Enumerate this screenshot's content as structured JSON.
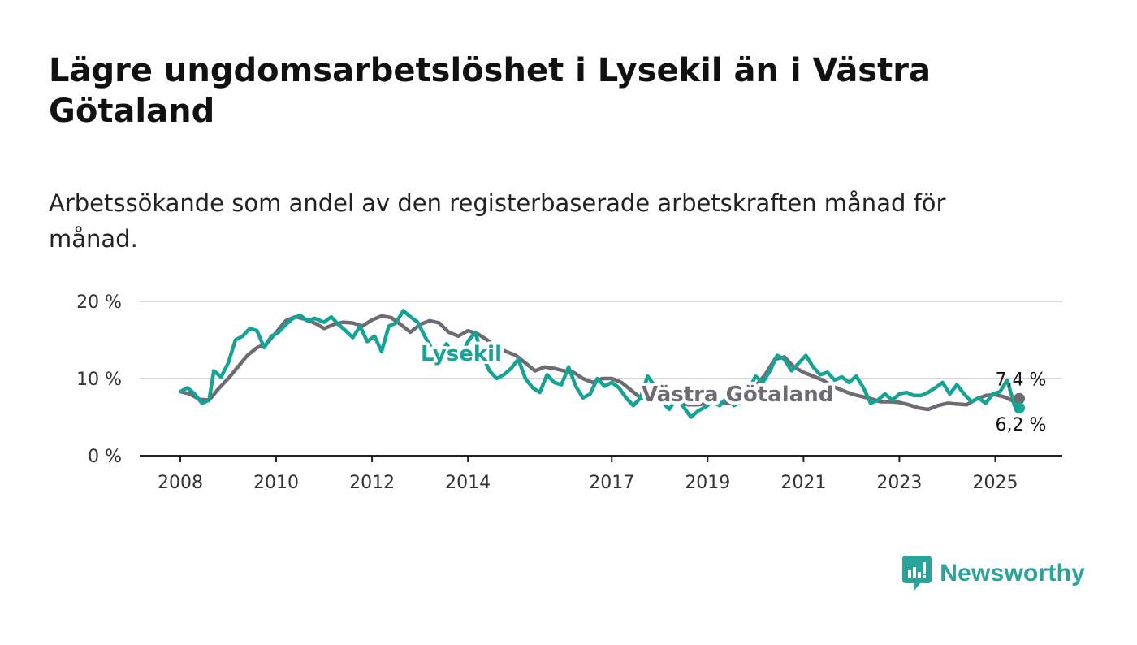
{
  "header": {
    "title": "Lägre ungdomsarbetslöshet i Lysekil än i Västra Götaland",
    "subtitle": "Arbetssökande som andel av den registerbaserade arbetskraften månad för månad."
  },
  "brand": {
    "name": "Newsworthy",
    "icon": "bar-chart-speech-bubble-icon",
    "color": "#2aa39a"
  },
  "chart_data": {
    "type": "line",
    "ylim": [
      0,
      20
    ],
    "yticks": [
      {
        "value": 0,
        "label": "0 %"
      },
      {
        "value": 10,
        "label": "10 %"
      },
      {
        "value": 20,
        "label": "20 %"
      }
    ],
    "xlim": [
      2007.5,
      2026.4
    ],
    "xticks": [
      {
        "value": 2008,
        "label": "2008"
      },
      {
        "value": 2010,
        "label": "2010"
      },
      {
        "value": 2012,
        "label": "2012"
      },
      {
        "value": 2014,
        "label": "2014"
      },
      {
        "value": 2017,
        "label": "2017"
      },
      {
        "value": 2019,
        "label": "2019"
      },
      {
        "value": 2021,
        "label": "2021"
      },
      {
        "value": 2023,
        "label": "2023"
      },
      {
        "value": 2025,
        "label": "2025"
      }
    ],
    "grid": true,
    "series": [
      {
        "name": "Västra Götaland",
        "color": "#6e6b72",
        "end_value_label": "7,4 %",
        "points": [
          [
            2008.0,
            8.3
          ],
          [
            2008.2,
            8.0
          ],
          [
            2008.4,
            7.3
          ],
          [
            2008.6,
            7.2
          ],
          [
            2008.8,
            8.7
          ],
          [
            2009.0,
            10.0
          ],
          [
            2009.2,
            11.5
          ],
          [
            2009.4,
            13.0
          ],
          [
            2009.6,
            14.0
          ],
          [
            2009.8,
            14.5
          ],
          [
            2010.0,
            16.0
          ],
          [
            2010.2,
            17.5
          ],
          [
            2010.4,
            18.0
          ],
          [
            2010.6,
            17.7
          ],
          [
            2010.8,
            17.2
          ],
          [
            2011.0,
            16.5
          ],
          [
            2011.2,
            17.0
          ],
          [
            2011.4,
            17.3
          ],
          [
            2011.6,
            17.2
          ],
          [
            2011.8,
            16.8
          ],
          [
            2012.0,
            17.6
          ],
          [
            2012.2,
            18.1
          ],
          [
            2012.4,
            17.9
          ],
          [
            2012.6,
            17.0
          ],
          [
            2012.8,
            16.0
          ],
          [
            2013.0,
            17.0
          ],
          [
            2013.2,
            17.5
          ],
          [
            2013.4,
            17.2
          ],
          [
            2013.6,
            16.0
          ],
          [
            2013.8,
            15.5
          ],
          [
            2014.0,
            16.2
          ],
          [
            2014.2,
            15.8
          ],
          [
            2014.4,
            15.0
          ],
          [
            2014.6,
            14.0
          ],
          [
            2014.8,
            13.5
          ],
          [
            2015.0,
            13.0
          ],
          [
            2015.2,
            12.0
          ],
          [
            2015.4,
            11.0
          ],
          [
            2015.6,
            11.5
          ],
          [
            2015.8,
            11.3
          ],
          [
            2016.0,
            11.0
          ],
          [
            2016.2,
            10.8
          ],
          [
            2016.4,
            10.0
          ],
          [
            2016.6,
            9.5
          ],
          [
            2016.8,
            10.0
          ],
          [
            2017.0,
            10.0
          ],
          [
            2017.2,
            9.5
          ],
          [
            2017.4,
            8.5
          ],
          [
            2017.6,
            7.5
          ],
          [
            2017.8,
            7.3
          ],
          [
            2018.0,
            7.2
          ],
          [
            2018.2,
            7.0
          ],
          [
            2018.4,
            6.8
          ],
          [
            2018.6,
            6.6
          ],
          [
            2018.8,
            6.6
          ],
          [
            2019.0,
            6.8
          ],
          [
            2019.2,
            6.9
          ],
          [
            2019.4,
            6.8
          ],
          [
            2019.6,
            7.0
          ],
          [
            2019.8,
            7.5
          ],
          [
            2020.0,
            9.0
          ],
          [
            2020.2,
            10.5
          ],
          [
            2020.4,
            12.5
          ],
          [
            2020.6,
            12.8
          ],
          [
            2020.8,
            11.5
          ],
          [
            2021.0,
            10.8
          ],
          [
            2021.2,
            10.3
          ],
          [
            2021.4,
            9.8
          ],
          [
            2021.6,
            9.0
          ],
          [
            2021.8,
            8.5
          ],
          [
            2022.0,
            8.0
          ],
          [
            2022.2,
            7.7
          ],
          [
            2022.4,
            7.4
          ],
          [
            2022.6,
            7.0
          ],
          [
            2022.8,
            7.0
          ],
          [
            2023.0,
            6.9
          ],
          [
            2023.2,
            6.6
          ],
          [
            2023.4,
            6.2
          ],
          [
            2023.6,
            6.0
          ],
          [
            2023.8,
            6.5
          ],
          [
            2024.0,
            6.8
          ],
          [
            2024.2,
            6.7
          ],
          [
            2024.4,
            6.6
          ],
          [
            2024.6,
            7.3
          ],
          [
            2024.8,
            7.8
          ],
          [
            2025.0,
            7.9
          ],
          [
            2025.2,
            7.6
          ],
          [
            2025.4,
            7.0
          ],
          [
            2025.5,
            7.4
          ]
        ]
      },
      {
        "name": "Lysekil",
        "color": "#14a394",
        "end_value_label": "6,2 %",
        "points": [
          [
            2008.0,
            8.3
          ],
          [
            2008.15,
            8.8
          ],
          [
            2008.3,
            8.0
          ],
          [
            2008.45,
            6.8
          ],
          [
            2008.6,
            7.2
          ],
          [
            2008.7,
            11.0
          ],
          [
            2008.85,
            10.2
          ],
          [
            2009.0,
            12.0
          ],
          [
            2009.15,
            15.0
          ],
          [
            2009.3,
            15.5
          ],
          [
            2009.45,
            16.5
          ],
          [
            2009.6,
            16.2
          ],
          [
            2009.75,
            14.0
          ],
          [
            2009.9,
            15.5
          ],
          [
            2010.05,
            16.0
          ],
          [
            2010.2,
            17.0
          ],
          [
            2010.35,
            17.8
          ],
          [
            2010.5,
            18.2
          ],
          [
            2010.65,
            17.5
          ],
          [
            2010.8,
            17.8
          ],
          [
            2011.0,
            17.3
          ],
          [
            2011.15,
            18.0
          ],
          [
            2011.3,
            17.0
          ],
          [
            2011.45,
            16.2
          ],
          [
            2011.6,
            15.3
          ],
          [
            2011.75,
            16.8
          ],
          [
            2011.9,
            14.8
          ],
          [
            2012.05,
            15.5
          ],
          [
            2012.2,
            13.5
          ],
          [
            2012.35,
            16.8
          ],
          [
            2012.5,
            17.2
          ],
          [
            2012.65,
            18.8
          ],
          [
            2012.8,
            18.0
          ],
          [
            2012.95,
            17.3
          ],
          [
            2013.1,
            15.5
          ],
          [
            2013.25,
            13.8
          ],
          [
            2013.4,
            12.5
          ],
          [
            2013.55,
            14.5
          ],
          [
            2013.7,
            13.2
          ],
          [
            2013.85,
            12.8
          ],
          [
            2014.0,
            14.8
          ],
          [
            2014.15,
            16.0
          ],
          [
            2014.3,
            13.0
          ],
          [
            2014.45,
            11.0
          ],
          [
            2014.6,
            10.0
          ],
          [
            2014.75,
            10.5
          ],
          [
            2014.9,
            11.3
          ],
          [
            2015.05,
            12.5
          ],
          [
            2015.2,
            10.0
          ],
          [
            2015.35,
            8.8
          ],
          [
            2015.5,
            8.2
          ],
          [
            2015.65,
            10.5
          ],
          [
            2015.8,
            9.5
          ],
          [
            2015.95,
            9.2
          ],
          [
            2016.1,
            11.5
          ],
          [
            2016.25,
            9.0
          ],
          [
            2016.4,
            7.5
          ],
          [
            2016.55,
            8.0
          ],
          [
            2016.7,
            10.0
          ],
          [
            2016.85,
            9.0
          ],
          [
            2017.0,
            9.5
          ],
          [
            2017.15,
            8.8
          ],
          [
            2017.3,
            7.5
          ],
          [
            2017.45,
            6.5
          ],
          [
            2017.6,
            7.5
          ],
          [
            2017.75,
            10.3
          ],
          [
            2017.9,
            9.0
          ],
          [
            2018.05,
            7.0
          ],
          [
            2018.2,
            6.0
          ],
          [
            2018.35,
            7.5
          ],
          [
            2018.5,
            6.3
          ],
          [
            2018.65,
            5.0
          ],
          [
            2018.8,
            5.8
          ],
          [
            2018.95,
            6.3
          ],
          [
            2019.1,
            7.0
          ],
          [
            2019.25,
            6.5
          ],
          [
            2019.4,
            7.5
          ],
          [
            2019.55,
            6.5
          ],
          [
            2019.7,
            7.0
          ],
          [
            2019.85,
            8.5
          ],
          [
            2020.0,
            10.3
          ],
          [
            2020.15,
            9.5
          ],
          [
            2020.3,
            11.0
          ],
          [
            2020.45,
            13.0
          ],
          [
            2020.6,
            12.5
          ],
          [
            2020.75,
            11.0
          ],
          [
            2020.9,
            12.0
          ],
          [
            2021.05,
            13.0
          ],
          [
            2021.2,
            11.5
          ],
          [
            2021.35,
            10.5
          ],
          [
            2021.5,
            10.8
          ],
          [
            2021.65,
            9.8
          ],
          [
            2021.8,
            10.2
          ],
          [
            2021.95,
            9.5
          ],
          [
            2022.1,
            10.3
          ],
          [
            2022.25,
            8.8
          ],
          [
            2022.4,
            6.8
          ],
          [
            2022.55,
            7.2
          ],
          [
            2022.7,
            8.0
          ],
          [
            2022.85,
            7.2
          ],
          [
            2023.0,
            8.0
          ],
          [
            2023.15,
            8.2
          ],
          [
            2023.3,
            7.8
          ],
          [
            2023.45,
            7.8
          ],
          [
            2023.6,
            8.2
          ],
          [
            2023.75,
            8.8
          ],
          [
            2023.9,
            9.5
          ],
          [
            2024.05,
            8.0
          ],
          [
            2024.2,
            9.2
          ],
          [
            2024.35,
            8.0
          ],
          [
            2024.5,
            7.0
          ],
          [
            2024.65,
            7.5
          ],
          [
            2024.8,
            6.8
          ],
          [
            2024.95,
            8.0
          ],
          [
            2025.1,
            8.3
          ],
          [
            2025.25,
            9.8
          ],
          [
            2025.4,
            6.5
          ],
          [
            2025.5,
            6.2
          ]
        ]
      }
    ]
  }
}
